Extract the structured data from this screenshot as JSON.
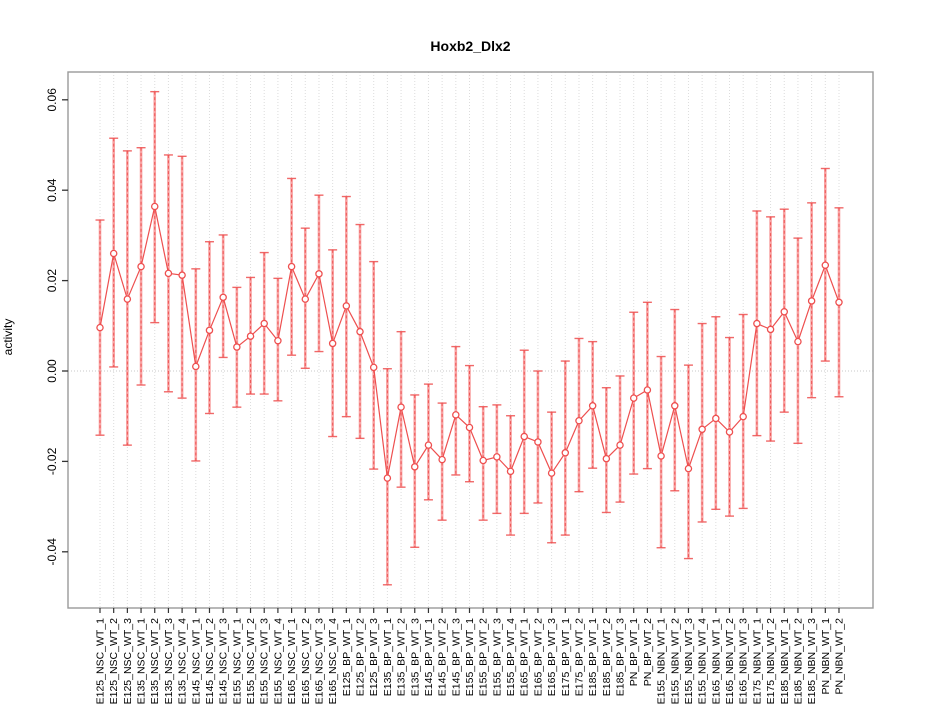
{
  "title": "Hoxb2_Dlx2",
  "chart_data": {
    "type": "line",
    "title": "Hoxb2_Dlx2",
    "xlabel": "",
    "ylabel": "activity",
    "ylim": [
      -0.052,
      0.066
    ],
    "yticks": [
      "-0.04",
      "-0.02",
      "0.00",
      "0.02",
      "0.04",
      "0.06"
    ],
    "grid": "vertical dotted gridline at every category",
    "zero_line": true,
    "legend_position": "none",
    "point_style": "open-circle with error bars, connected by line",
    "colors": {
      "series_red": "#ee4f4f",
      "errorbar_light": "#f8a3a3",
      "gridline": "#dcdcdc",
      "zero_line": "#c8c8c8",
      "frame": "#9a9a9a",
      "text": "#000000"
    },
    "categories": [
      "E125_NSC_WT_1",
      "E125_NSC_WT_2",
      "E125_NSC_WT_3",
      "E135_NSC_WT_1",
      "E135_NSC_WT_2",
      "E135_NSC_WT_3",
      "E135_NSC_WT_4",
      "E145_NSC_WT_1",
      "E145_NSC_WT_2",
      "E145_NSC_WT_3",
      "E155_NSC_WT_1",
      "E155_NSC_WT_2",
      "E155_NSC_WT_3",
      "E155_NSC_WT_4",
      "E165_NSC_WT_1",
      "E165_NSC_WT_2",
      "E165_NSC_WT_3",
      "E165_NSC_WT_4",
      "E125_BP_WT_1",
      "E125_BP_WT_2",
      "E125_BP_WT_3",
      "E135_BP_WT_1",
      "E135_BP_WT_2",
      "E135_BP_WT_3",
      "E145_BP_WT_1",
      "E145_BP_WT_2",
      "E145_BP_WT_3",
      "E155_BP_WT_1",
      "E155_BP_WT_2",
      "E155_BP_WT_3",
      "E155_BP_WT_4",
      "E165_BP_WT_1",
      "E165_BP_WT_2",
      "E165_BP_WT_3",
      "E175_BP_WT_1",
      "E175_BP_WT_2",
      "E185_BP_WT_1",
      "E185_BP_WT_2",
      "E185_BP_WT_3",
      "PN_BP_WT_1",
      "PN_BP_WT_2",
      "E155_NBN_WT_1",
      "E155_NBN_WT_2",
      "E155_NBN_WT_3",
      "E155_NBN_WT_4",
      "E165_NBN_WT_1",
      "E165_NBN_WT_2",
      "E165_NBN_WT_3",
      "E175_NBN_WT_1",
      "E175_NBN_WT_2",
      "E185_NBN_WT_1",
      "E185_NBN_WT_2",
      "E185_NBN_WT_3",
      "PN_NBN_WT_1",
      "PN_NBN_WT_2"
    ],
    "series": [
      {
        "name": "activity",
        "values": [
          0.0096,
          0.026,
          0.0159,
          0.0231,
          0.0364,
          0.0216,
          0.0212,
          0.001,
          0.009,
          0.0163,
          0.0053,
          0.0077,
          0.0105,
          0.0067,
          0.0231,
          0.0159,
          0.0215,
          0.0061,
          0.0144,
          0.0087,
          0.0008,
          -0.0237,
          -0.008,
          -0.0212,
          -0.0164,
          -0.0196,
          -0.0097,
          -0.0125,
          -0.0198,
          -0.019,
          -0.0222,
          -0.0145,
          -0.0157,
          -0.0226,
          -0.0181,
          -0.011,
          -0.0077,
          -0.0194,
          -0.0164,
          -0.006,
          -0.0042,
          -0.0188,
          -0.0077,
          -0.0216,
          -0.0129,
          -0.0105,
          -0.0135,
          -0.0101,
          0.0105,
          0.0092,
          0.0131,
          0.0065,
          0.0155,
          0.0234,
          0.0152
        ],
        "upper": [
          0.0334,
          0.0515,
          0.0487,
          0.0494,
          0.0618,
          0.0478,
          0.0475,
          0.0226,
          0.0286,
          0.0301,
          0.0185,
          0.0207,
          0.0262,
          0.0205,
          0.0426,
          0.0316,
          0.0389,
          0.0268,
          0.0386,
          0.0324,
          0.0242,
          0.0005,
          0.0087,
          -0.0053,
          -0.0029,
          -0.0071,
          0.0054,
          0.0012,
          -0.0079,
          -0.0075,
          -0.0099,
          0.0046,
          0.0,
          -0.0091,
          0.0022,
          0.0072,
          0.0065,
          -0.0037,
          -0.0011,
          0.013,
          0.0152,
          0.0032,
          0.0136,
          0.0013,
          0.0105,
          0.012,
          0.0074,
          0.0125,
          0.0354,
          0.0341,
          0.0358,
          0.0294,
          0.0372,
          0.0448,
          0.0361
        ],
        "lower": [
          -0.0142,
          0.0009,
          -0.0164,
          -0.0031,
          0.0107,
          -0.0046,
          -0.006,
          -0.0199,
          -0.0094,
          0.003,
          -0.008,
          -0.0051,
          -0.0051,
          -0.0066,
          0.0035,
          0.0006,
          0.0043,
          -0.0145,
          -0.0101,
          -0.0149,
          -0.0217,
          -0.0473,
          -0.0257,
          -0.039,
          -0.0285,
          -0.033,
          -0.023,
          -0.0245,
          -0.033,
          -0.0315,
          -0.0363,
          -0.0315,
          -0.0292,
          -0.038,
          -0.0363,
          -0.0267,
          -0.0215,
          -0.0313,
          -0.029,
          -0.0228,
          -0.0216,
          -0.0391,
          -0.0265,
          -0.0415,
          -0.0334,
          -0.0306,
          -0.0321,
          -0.0304,
          -0.0143,
          -0.0155,
          -0.0091,
          -0.016,
          -0.0059,
          0.0022,
          -0.0057
        ]
      }
    ]
  }
}
